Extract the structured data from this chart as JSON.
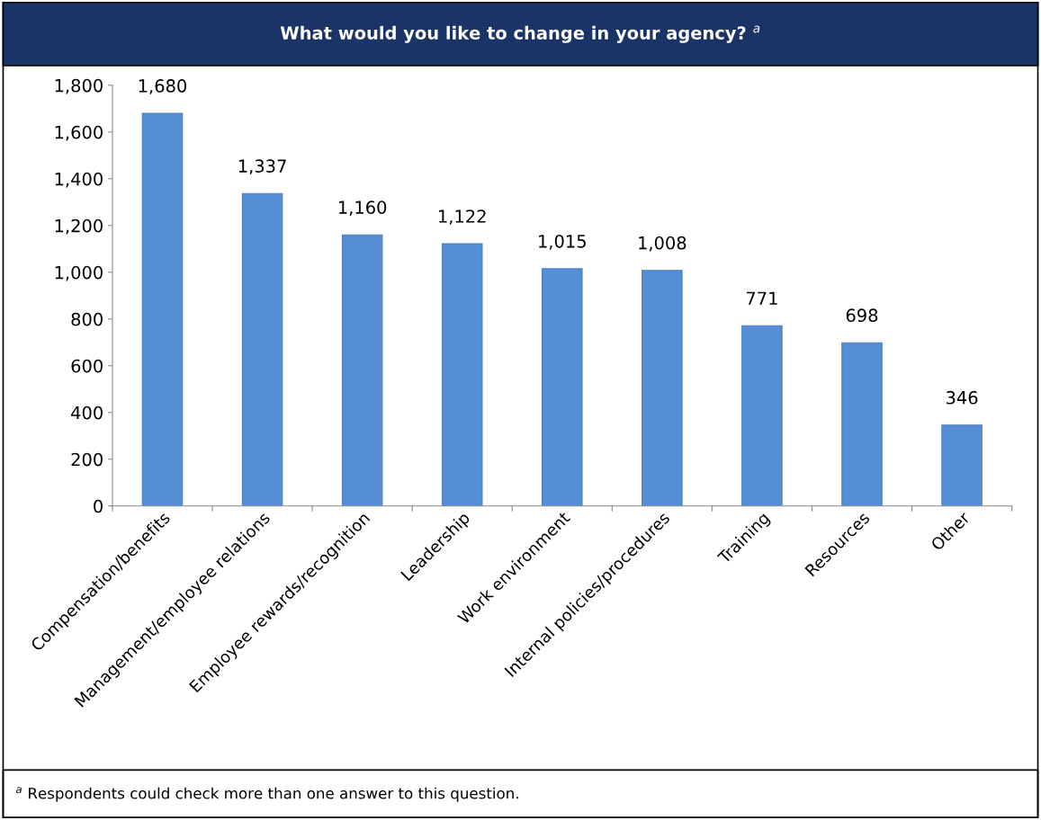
{
  "chart_data": {
    "type": "bar",
    "title": "What would you like to change in your agency? $^{a}$",
    "categories": [
      "Compensation/benefits",
      "Management/employee relations",
      "Employee rewards/recognition",
      "Leadership",
      "Work environment",
      "Internal policies/procedures",
      "Training",
      "Resources",
      "Other"
    ],
    "values": [
      1680,
      1337,
      1160,
      1122,
      1015,
      1008,
      771,
      698,
      346
    ],
    "color": "#558ed5",
    "ylim": [
      0,
      1800
    ],
    "yticks": [
      0,
      {
        "value": 200,
        "label": "200"
      },
      {
        "value": 400,
        "label": "400"
      },
      {
        "value": 600,
        "label": "600"
      },
      {
        "value": 800,
        "label": "800"
      },
      {
        "value": 1000,
        "label": "1,000"
      },
      {
        "value": 1200,
        "label": "1,200"
      },
      {
        "value": 1400,
        "label": "1,400"
      },
      {
        "value": 1600,
        "label": "1,600"
      },
      {
        "value": 1800,
        "label": "1,800"
      }
    ],
    "value_labels": [
      "1,680",
      "1,337",
      "1,160",
      "1,122",
      "1,015",
      "1,008",
      "771",
      "698",
      "346"
    ],
    "grid": false,
    "annotations": [
      "$^{a}$ Respondents could check more than one answer to this question."
    ]
  }
}
